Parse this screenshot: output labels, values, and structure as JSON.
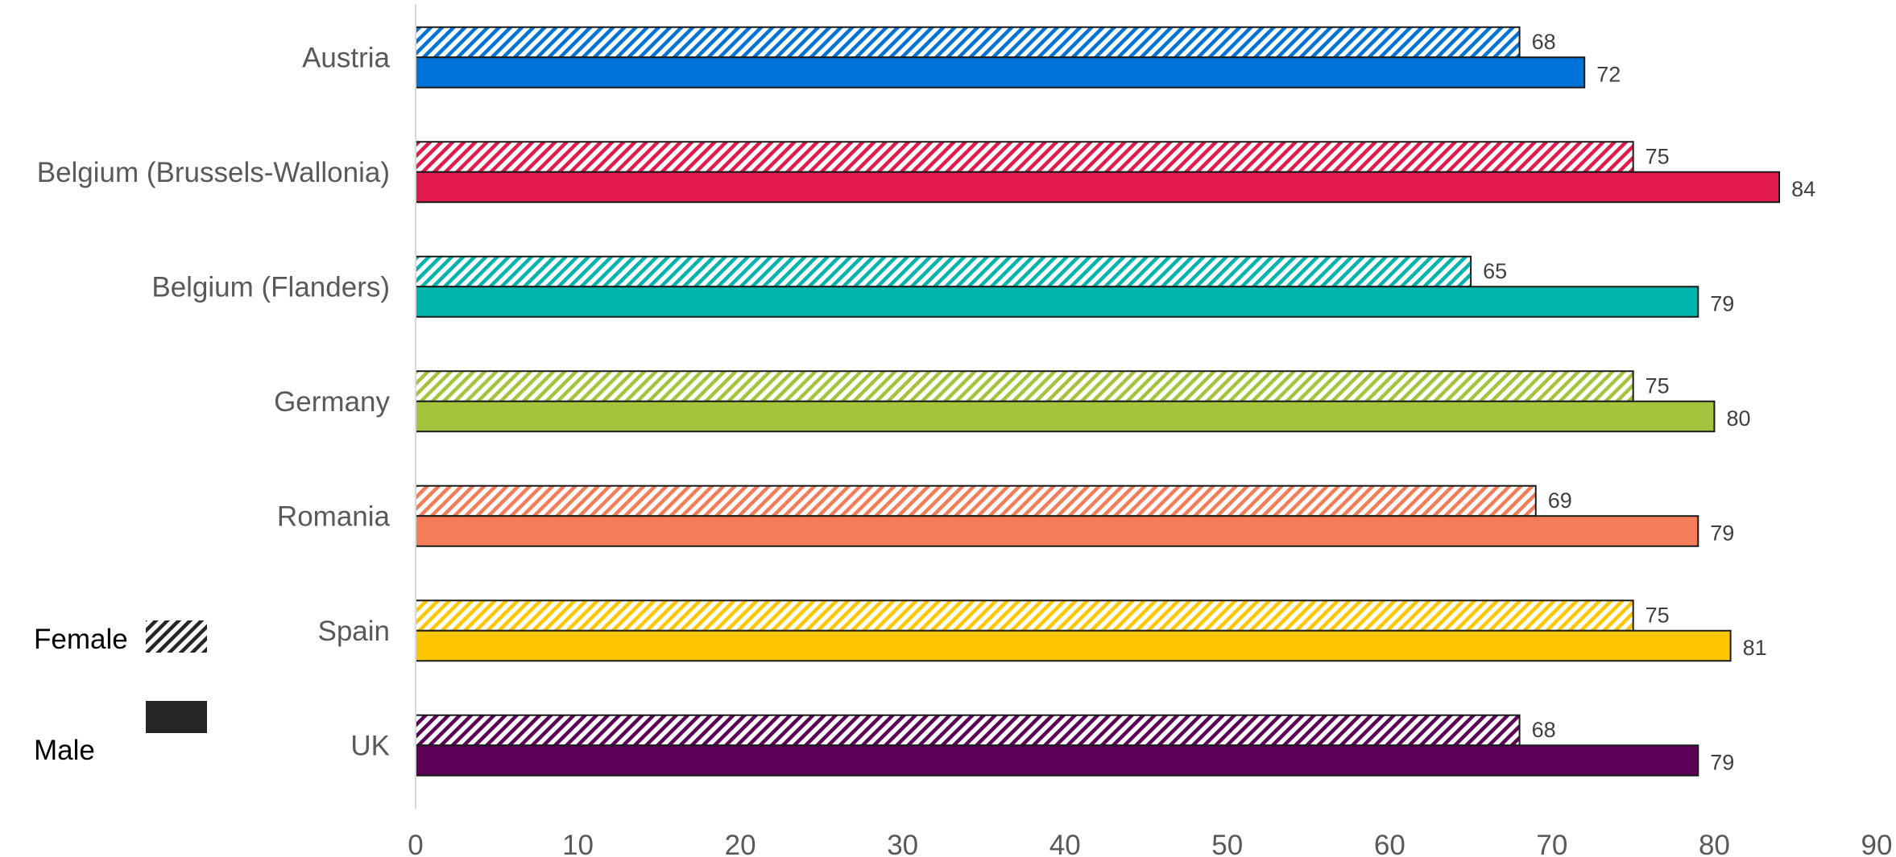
{
  "chart_data": {
    "type": "bar",
    "orientation": "horizontal",
    "categories": [
      "Austria",
      "Belgium (Brussels-Wallonia)",
      "Belgium (Flanders)",
      "Germany",
      "Romania",
      "Spain",
      "UK"
    ],
    "series": [
      {
        "name": "Female",
        "pattern": "hatched",
        "values": [
          68,
          75,
          65,
          75,
          69,
          75,
          68
        ]
      },
      {
        "name": "Male",
        "pattern": "solid",
        "values": [
          72,
          84,
          79,
          80,
          79,
          81,
          79
        ]
      }
    ],
    "category_colors": [
      "#0073D9",
      "#E31B4D",
      "#00B5AD",
      "#A5C43E",
      "#F47C59",
      "#FEC702",
      "#5C0057"
    ],
    "xlim": [
      0,
      90
    ],
    "xticks": [
      0,
      10,
      20,
      30,
      40,
      50,
      60,
      70,
      80,
      90
    ],
    "grid": false,
    "title": "",
    "xlabel": "",
    "ylabel": "",
    "legend": {
      "position": "bottom-left",
      "items": [
        {
          "label": "Female",
          "swatch": "hatched"
        },
        {
          "label": "Male",
          "swatch": "solid"
        }
      ]
    }
  }
}
